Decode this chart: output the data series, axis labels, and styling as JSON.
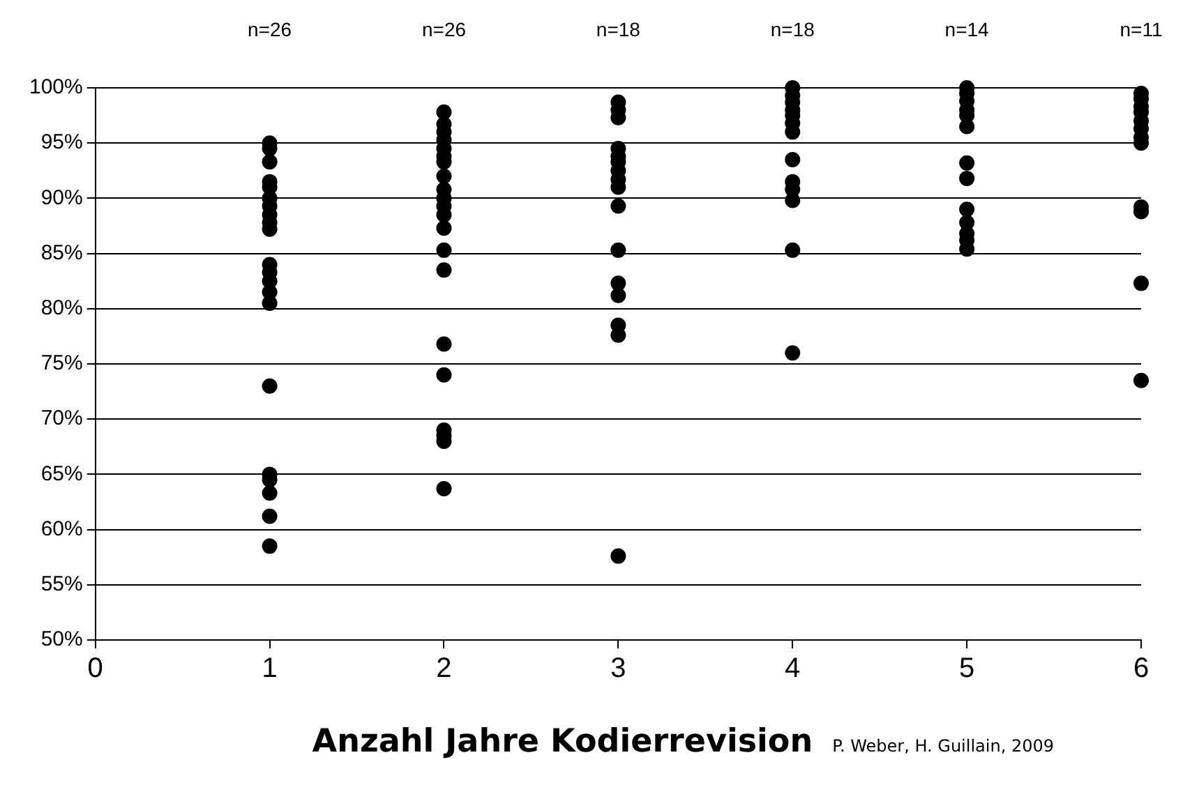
{
  "chart_data": {
    "type": "scatter",
    "xlabel": "Anzahl Jahre Kodierrevision",
    "series": [
      {
        "color": "#000000",
        "x": [
          1,
          1,
          1,
          1,
          1,
          1,
          1,
          1,
          1,
          1,
          1,
          1,
          1,
          1,
          1,
          1,
          1,
          1,
          1,
          1,
          1,
          2,
          2,
          2,
          2,
          2,
          2,
          2,
          2,
          2,
          2,
          2,
          2,
          2,
          2,
          2,
          2,
          2,
          2,
          2,
          2,
          2,
          3,
          3,
          3,
          3,
          3,
          3,
          3,
          3,
          3,
          3,
          3,
          3,
          3,
          3,
          3,
          3,
          4,
          4,
          4,
          4,
          4,
          4,
          4,
          4,
          4,
          4,
          4,
          4,
          4,
          5,
          5,
          5,
          5,
          5,
          5,
          5,
          5,
          5,
          5,
          5,
          5,
          5,
          6,
          6,
          6,
          6,
          6,
          6,
          6,
          6,
          6,
          6,
          6,
          6
        ],
        "values": [
          95,
          94.5,
          93.3,
          91.5,
          91,
          90,
          89.3,
          88.5,
          87.8,
          87.2,
          84,
          83.3,
          82.5,
          81.5,
          80.5,
          73,
          65,
          64.5,
          63.3,
          61.2,
          58.5,
          97.8,
          96.7,
          96,
          95.3,
          94.5,
          93.8,
          93.3,
          92,
          90.8,
          90,
          89.3,
          88.5,
          87.3,
          85.3,
          83.5,
          76.8,
          74,
          69,
          68.5,
          68,
          63.7,
          98.7,
          98,
          97.3,
          94.5,
          93.8,
          93.3,
          92.5,
          91.7,
          91,
          89.3,
          85.3,
          82.3,
          81.2,
          78.5,
          77.6,
          57.6,
          100,
          99.3,
          98.7,
          98,
          97.5,
          96.8,
          96,
          93.5,
          91.5,
          90.8,
          89.8,
          85.3,
          76,
          100,
          99.5,
          98.8,
          98,
          97.5,
          96.5,
          93.2,
          91.8,
          89,
          87.8,
          86.8,
          86.2,
          85.4,
          99.5,
          99,
          98.3,
          97.8,
          97,
          96.3,
          95.5,
          95,
          89.2,
          88.8,
          82.3,
          73.5
        ]
      }
    ],
    "xlim": [
      0,
      6
    ],
    "xticks": [
      0,
      1,
      2,
      3,
      4,
      5,
      6
    ],
    "ylim": [
      50,
      100
    ],
    "yticks": [
      {
        "value": 50,
        "label": "50%"
      },
      {
        "value": 55,
        "label": "55%"
      },
      {
        "value": 60,
        "label": "60%"
      },
      {
        "value": 65,
        "label": "65%"
      },
      {
        "value": 70,
        "label": "70%"
      },
      {
        "value": 75,
        "label": "75%"
      },
      {
        "value": 80,
        "label": "80%"
      },
      {
        "value": 85,
        "label": "85%"
      },
      {
        "value": 90,
        "label": "90%"
      },
      {
        "value": 95,
        "label": "95%"
      },
      {
        "value": 100,
        "label": "100%"
      }
    ],
    "grid": "y",
    "marker": "circle",
    "legend": false,
    "annotations": [
      "n=26",
      "n=26",
      "n=18",
      "n=18",
      "n=14",
      "n=11",
      "P. Weber, H. Guillain, 2009"
    ]
  }
}
